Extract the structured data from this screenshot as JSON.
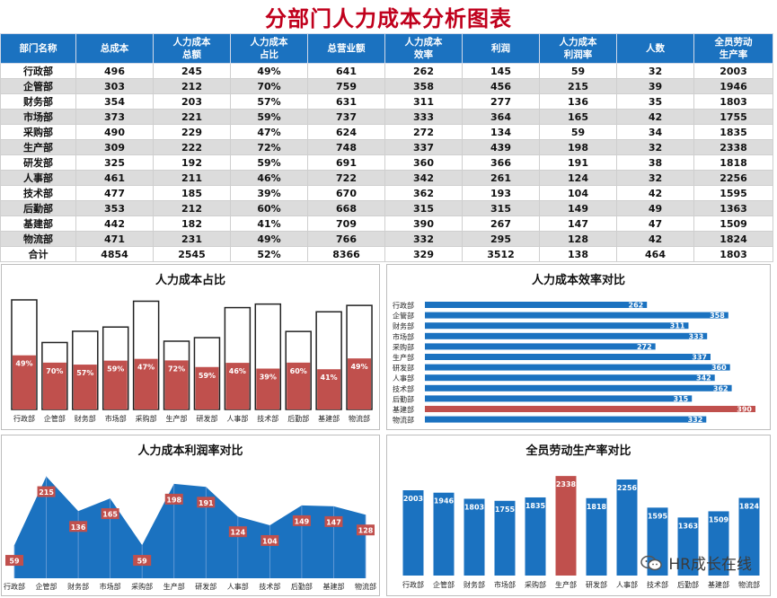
{
  "title": "分部门人力成本分析图表",
  "headers": [
    "部门名称",
    "总成本",
    "人力成本\n总额",
    "人力成本\n占比",
    "总营业额",
    "人力成本\n效率",
    "利润",
    "人力成本\n利润率",
    "人数",
    "全员劳动\n生产率"
  ],
  "rows": [
    [
      "行政部",
      "496",
      "245",
      "49%",
      "641",
      "262",
      "145",
      "59",
      "32",
      "2003"
    ],
    [
      "企管部",
      "303",
      "212",
      "70%",
      "759",
      "358",
      "456",
      "215",
      "39",
      "1946"
    ],
    [
      "财务部",
      "354",
      "203",
      "57%",
      "631",
      "311",
      "277",
      "136",
      "35",
      "1803"
    ],
    [
      "市场部",
      "373",
      "221",
      "59%",
      "737",
      "333",
      "364",
      "165",
      "42",
      "1755"
    ],
    [
      "采购部",
      "490",
      "229",
      "47%",
      "624",
      "272",
      "134",
      "59",
      "34",
      "1835"
    ],
    [
      "生产部",
      "309",
      "222",
      "72%",
      "748",
      "337",
      "439",
      "198",
      "32",
      "2338"
    ],
    [
      "研发部",
      "325",
      "192",
      "59%",
      "691",
      "360",
      "366",
      "191",
      "38",
      "1818"
    ],
    [
      "人事部",
      "461",
      "211",
      "46%",
      "722",
      "342",
      "261",
      "124",
      "32",
      "2256"
    ],
    [
      "技术部",
      "477",
      "185",
      "39%",
      "670",
      "362",
      "193",
      "104",
      "42",
      "1595"
    ],
    [
      "后勤部",
      "353",
      "212",
      "60%",
      "668",
      "315",
      "315",
      "149",
      "49",
      "1363"
    ],
    [
      "基建部",
      "442",
      "182",
      "41%",
      "709",
      "390",
      "267",
      "147",
      "47",
      "1509"
    ],
    [
      "物流部",
      "471",
      "231",
      "49%",
      "766",
      "332",
      "295",
      "128",
      "42",
      "1824"
    ]
  ],
  "total": [
    "合计",
    "4854",
    "2545",
    "52%",
    "8366",
    "329",
    "3512",
    "138",
    "464",
    "1803"
  ],
  "colors": {
    "blue": "#1b72c0",
    "red": "#c0504d",
    "title_red": "#c0001c"
  },
  "chart_data": [
    {
      "type": "bar",
      "title": "人力成本占比",
      "categories": [
        "行政部",
        "企管部",
        "财务部",
        "市场部",
        "采购部",
        "生产部",
        "研发部",
        "人事部",
        "技术部",
        "后勤部",
        "基建部",
        "物流部"
      ],
      "series": [
        {
          "name": "总成本",
          "values": [
            496,
            303,
            354,
            373,
            490,
            309,
            325,
            461,
            477,
            353,
            442,
            471
          ]
        },
        {
          "name": "人力成本总额",
          "values": [
            245,
            212,
            203,
            221,
            229,
            222,
            192,
            211,
            185,
            212,
            182,
            231
          ]
        }
      ],
      "labels": [
        "49%",
        "70%",
        "57%",
        "59%",
        "47%",
        "72%",
        "59%",
        "46%",
        "39%",
        "60%",
        "41%",
        "49%"
      ]
    },
    {
      "type": "bar",
      "orientation": "horizontal",
      "title": "人力成本效率对比",
      "categories": [
        "行政部",
        "企管部",
        "财务部",
        "市场部",
        "采购部",
        "生产部",
        "研发部",
        "人事部",
        "技术部",
        "后勤部",
        "基建部",
        "物流部"
      ],
      "values": [
        262,
        358,
        311,
        333,
        272,
        337,
        360,
        342,
        362,
        315,
        390,
        332
      ],
      "highlight": "基建部"
    },
    {
      "type": "area",
      "title": "人力成本利润率对比",
      "categories": [
        "行政部",
        "企管部",
        "财务部",
        "市场部",
        "采购部",
        "生产部",
        "研发部",
        "人事部",
        "技术部",
        "后勤部",
        "基建部",
        "物流部"
      ],
      "values": [
        59,
        215,
        136,
        165,
        59,
        198,
        191,
        124,
        104,
        149,
        147,
        128
      ]
    },
    {
      "type": "bar",
      "title": "全员劳动生产率对比",
      "categories": [
        "行政部",
        "企管部",
        "财务部",
        "市场部",
        "采购部",
        "生产部",
        "研发部",
        "人事部",
        "技术部",
        "后勤部",
        "基建部",
        "物流部"
      ],
      "values": [
        2003,
        1946,
        1803,
        1755,
        1835,
        2338,
        1818,
        2256,
        1595,
        1363,
        1509,
        1824
      ],
      "highlight": "生产部"
    }
  ],
  "watermark": "HR成长在线"
}
